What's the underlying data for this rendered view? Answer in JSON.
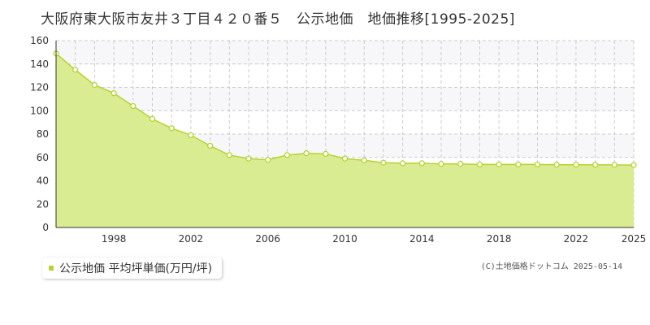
{
  "title": "大阪府東大阪市友井３丁目４２０番５　公示地価　地価推移[1995-2025]",
  "legend": {
    "label": "公示地価 平均坪単価(万円/坪)"
  },
  "credit": "(C)土地価格ドットコム 2025-05-14",
  "colors": {
    "fill": "#daec92",
    "line": "#b5d42f",
    "marker_fill": "#ffffff",
    "grid": "#cccccc",
    "band": "#f7f7fa"
  },
  "chart_data": {
    "type": "area",
    "x": [
      1995,
      1996,
      1997,
      1998,
      1999,
      2000,
      2001,
      2002,
      2003,
      2004,
      2005,
      2006,
      2007,
      2008,
      2009,
      2010,
      2011,
      2012,
      2013,
      2014,
      2015,
      2016,
      2017,
      2018,
      2019,
      2020,
      2021,
      2022,
      2023,
      2024,
      2025
    ],
    "series": [
      {
        "name": "公示地価 平均坪単価(万円/坪)",
        "values": [
          149,
          135,
          122,
          115,
          104,
          93,
          85,
          79,
          70,
          62,
          59,
          58,
          62,
          63.5,
          63,
          59,
          57.5,
          55.5,
          55,
          55,
          54.5,
          54.5,
          54,
          54,
          54,
          54,
          53.8,
          53.8,
          53.6,
          53.6,
          53.5
        ]
      }
    ],
    "xlim": [
      1995,
      2025
    ],
    "ylim": [
      0,
      160
    ],
    "yticks": [
      0,
      20,
      40,
      60,
      80,
      100,
      120,
      140,
      160
    ],
    "xticks": [
      1998,
      2002,
      2006,
      2010,
      2014,
      2018,
      2022,
      2025
    ],
    "xlabel": "",
    "ylabel": "",
    "grid": true,
    "legend_position": "bottom-left"
  }
}
